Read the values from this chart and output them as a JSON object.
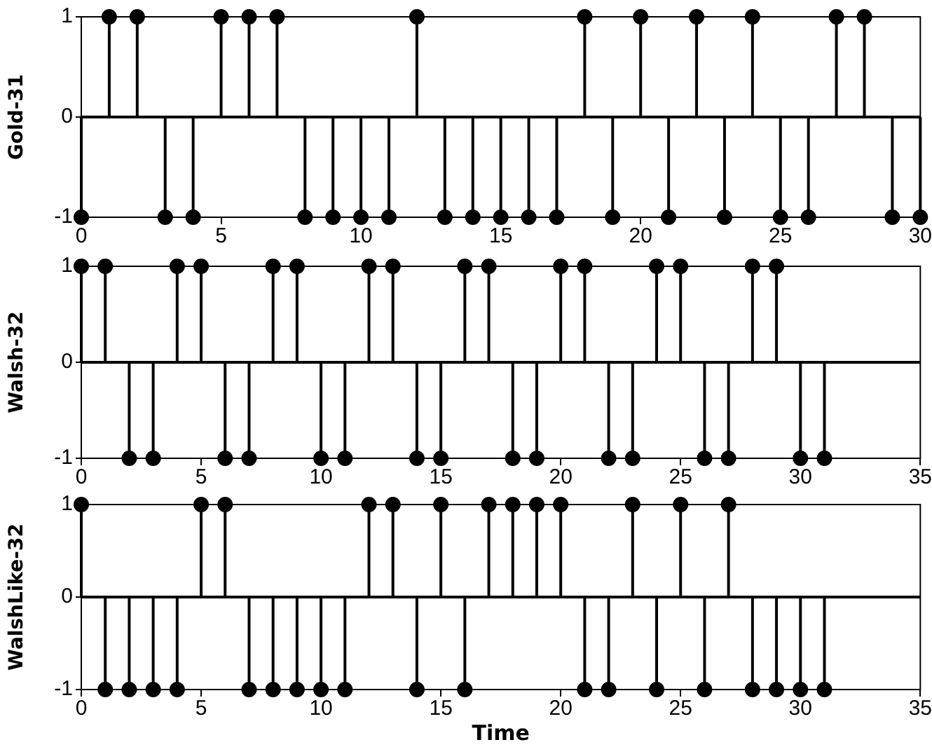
{
  "chart_data": [
    {
      "type": "lollipop",
      "ylabel": "Gold-31",
      "x": [
        0,
        1,
        2,
        3,
        4,
        5,
        6,
        7,
        8,
        9,
        10,
        11,
        12,
        13,
        14,
        15,
        16,
        17,
        18,
        19,
        20,
        21,
        22,
        23,
        24,
        25,
        26,
        27,
        28,
        29,
        30
      ],
      "series": [
        {
          "color": "#000000",
          "values": [
            -1,
            1,
            1,
            -1,
            -1,
            1,
            1,
            1,
            -1,
            -1,
            -1,
            -1,
            1,
            -1,
            -1,
            -1,
            -1,
            -1,
            1,
            -1,
            1,
            -1,
            1,
            -1,
            1,
            -1,
            -1,
            1,
            1,
            -1,
            -1
          ]
        }
      ],
      "xlim": [
        0,
        30
      ],
      "xticks": [
        0,
        5,
        10,
        15,
        20,
        25,
        30
      ],
      "ylim": [
        -1,
        1
      ],
      "yticks": [
        -1,
        0,
        1
      ],
      "legend": false,
      "marker": "circle"
    },
    {
      "type": "lollipop",
      "ylabel": "Walsh-32",
      "x": [
        0,
        1,
        2,
        3,
        4,
        5,
        6,
        7,
        8,
        9,
        10,
        11,
        12,
        13,
        14,
        15,
        16,
        17,
        18,
        19,
        20,
        21,
        22,
        23,
        24,
        25,
        26,
        27,
        28,
        29,
        30,
        31
      ],
      "series": [
        {
          "color": "#000000",
          "values": [
            1,
            1,
            -1,
            -1,
            1,
            1,
            -1,
            -1,
            1,
            1,
            -1,
            -1,
            1,
            1,
            -1,
            -1,
            1,
            1,
            -1,
            -1,
            1,
            1,
            -1,
            -1,
            1,
            1,
            -1,
            -1,
            1,
            1,
            -1,
            -1
          ]
        }
      ],
      "xlim": [
        0,
        35
      ],
      "xticks": [
        0,
        5,
        10,
        15,
        20,
        25,
        30,
        35
      ],
      "ylim": [
        -1,
        1
      ],
      "yticks": [
        -1,
        0,
        1
      ],
      "legend": false,
      "marker": "circle"
    },
    {
      "type": "lollipop",
      "ylabel": "WalshLike-32",
      "xlabel": "Time",
      "x": [
        0,
        1,
        2,
        3,
        4,
        5,
        6,
        7,
        8,
        9,
        10,
        11,
        12,
        13,
        14,
        15,
        16,
        17,
        18,
        19,
        20,
        21,
        22,
        23,
        24,
        25,
        26,
        27,
        28,
        29,
        30,
        31
      ],
      "series": [
        {
          "color": "#000000",
          "values": [
            1,
            -1,
            -1,
            -1,
            -1,
            1,
            1,
            -1,
            -1,
            -1,
            -1,
            -1,
            1,
            1,
            -1,
            1,
            -1,
            1,
            1,
            1,
            1,
            -1,
            -1,
            1,
            -1,
            1,
            -1,
            1,
            -1,
            -1,
            -1,
            -1
          ]
        }
      ],
      "xlim": [
        0,
        35
      ],
      "xticks": [
        0,
        5,
        10,
        15,
        20,
        25,
        30,
        35
      ],
      "ylim": [
        -1,
        1
      ],
      "yticks": [
        -1,
        0,
        1
      ],
      "legend": false,
      "marker": "circle"
    }
  ]
}
